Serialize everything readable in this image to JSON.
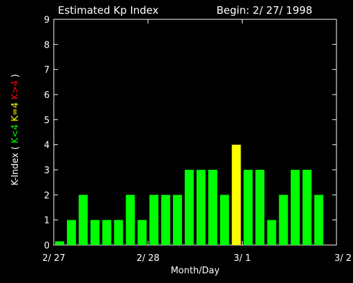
{
  "chart_data": {
    "type": "bar",
    "title": "Estimated Kp Index",
    "begin_label": "Begin: 2/ 27/ 1998",
    "xlabel": "Month/Day",
    "ylabel": {
      "prefix": "K-Index (",
      "parts": [
        {
          "text": "K<4",
          "color": "#00ff00"
        },
        {
          "text": "K=4",
          "color": "#ffff00"
        },
        {
          "text": "K>4",
          "color": "#ff0000"
        }
      ],
      "suffix": ")"
    },
    "ylim": [
      0,
      9
    ],
    "yticks": [
      "0",
      "1",
      "2",
      "3",
      "4",
      "5",
      "6",
      "7",
      "8",
      "9"
    ],
    "x_tick_labels": [
      "2/ 27",
      "2/ 28",
      "3/ 1",
      "3/ 2"
    ],
    "values": [
      0.15,
      1,
      2,
      1,
      1,
      1,
      2,
      1,
      2,
      2,
      2,
      3,
      3,
      3,
      2,
      4,
      3,
      3,
      1,
      2,
      3,
      3,
      2
    ],
    "colors": {
      "low": "#00ff00",
      "mid": "#ffff00",
      "high": "#ff0000",
      "axes": "#ffffff",
      "background": "#000000"
    }
  }
}
